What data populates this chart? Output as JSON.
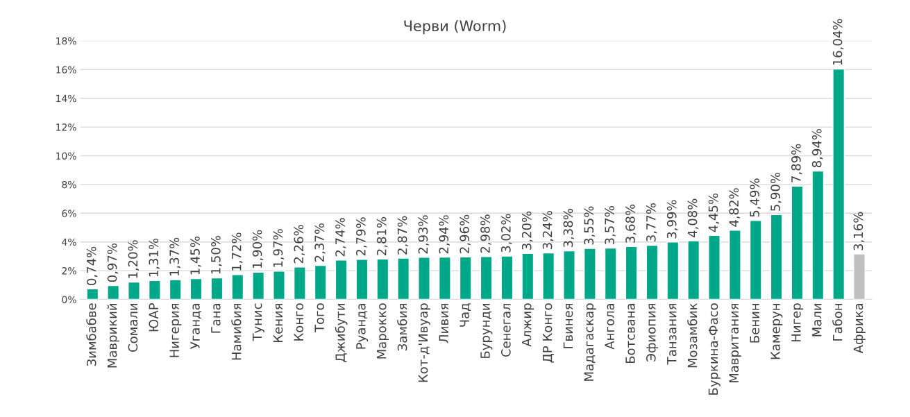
{
  "chart_data": {
    "type": "bar",
    "title": "Черви (Worm)",
    "categories": [
      "Зимбабве",
      "Маврикий",
      "Сомали",
      "ЮАР",
      "Нигерия",
      "Уганда",
      "Гана",
      "Намибия",
      "Тунис",
      "Кения",
      "Конго",
      "Того",
      "Джибути",
      "Руанда",
      "Марокко",
      "Замбия",
      "Кот-д'Ивуар",
      "Ливия",
      "Чад",
      "Бурунди",
      "Сенегал",
      "Алжир",
      "ДР Конго",
      "Гвинея",
      "Мадагаскар",
      "Ангола",
      "Ботсвана",
      "Эфиопия",
      "Танзания",
      "Мозамбик",
      "Буркина-Фасо",
      "Мавритания",
      "Бенин",
      "Камерун",
      "Нигер",
      "Мали",
      "Габон",
      "Африка"
    ],
    "values": [
      0.74,
      0.97,
      1.2,
      1.31,
      1.37,
      1.45,
      1.5,
      1.72,
      1.9,
      1.97,
      2.26,
      2.37,
      2.74,
      2.79,
      2.81,
      2.87,
      2.93,
      2.94,
      2.96,
      2.98,
      3.02,
      3.2,
      3.24,
      3.38,
      3.55,
      3.57,
      3.68,
      3.77,
      3.99,
      4.08,
      4.45,
      4.82,
      5.49,
      5.9,
      7.89,
      8.94,
      16.04,
      3.16
    ],
    "value_labels": [
      "0,74%",
      "0,97%",
      "1,20%",
      "1,31%",
      "1,37%",
      "1,45%",
      "1,50%",
      "1,72%",
      "1,90%",
      "1,97%",
      "2,26%",
      "2,37%",
      "2,74%",
      "2,79%",
      "2,81%",
      "2,87%",
      "2,93%",
      "2,94%",
      "2,96%",
      "2,98%",
      "3,02%",
      "3,20%",
      "3,24%",
      "3,38%",
      "3,55%",
      "3,57%",
      "3,68%",
      "3,77%",
      "3,99%",
      "4,08%",
      "4,45%",
      "4,82%",
      "5,49%",
      "5,90%",
      "7,89%",
      "8,94%",
      "16,04%",
      "3,16%"
    ],
    "colors": [
      "#00a88a",
      "#00a88a",
      "#00a88a",
      "#00a88a",
      "#00a88a",
      "#00a88a",
      "#00a88a",
      "#00a88a",
      "#00a88a",
      "#00a88a",
      "#00a88a",
      "#00a88a",
      "#00a88a",
      "#00a88a",
      "#00a88a",
      "#00a88a",
      "#00a88a",
      "#00a88a",
      "#00a88a",
      "#00a88a",
      "#00a88a",
      "#00a88a",
      "#00a88a",
      "#00a88a",
      "#00a88a",
      "#00a88a",
      "#00a88a",
      "#00a88a",
      "#00a88a",
      "#00a88a",
      "#00a88a",
      "#00a88a",
      "#00a88a",
      "#00a88a",
      "#00a88a",
      "#00a88a",
      "#00a88a",
      "#bfbfbf"
    ],
    "ylim": [
      0,
      18
    ],
    "yticks": [
      {
        "value": 0,
        "label": "0%"
      },
      {
        "value": 2,
        "label": "2%"
      },
      {
        "value": 4,
        "label": "4%"
      },
      {
        "value": 6,
        "label": "6%"
      },
      {
        "value": 8,
        "label": "8%"
      },
      {
        "value": 10,
        "label": "10%"
      },
      {
        "value": 12,
        "label": "12%"
      },
      {
        "value": 14,
        "label": "14%"
      },
      {
        "value": 16,
        "label": "16%"
      },
      {
        "value": 18,
        "label": "18%"
      }
    ],
    "grid": "y",
    "legend": false
  }
}
